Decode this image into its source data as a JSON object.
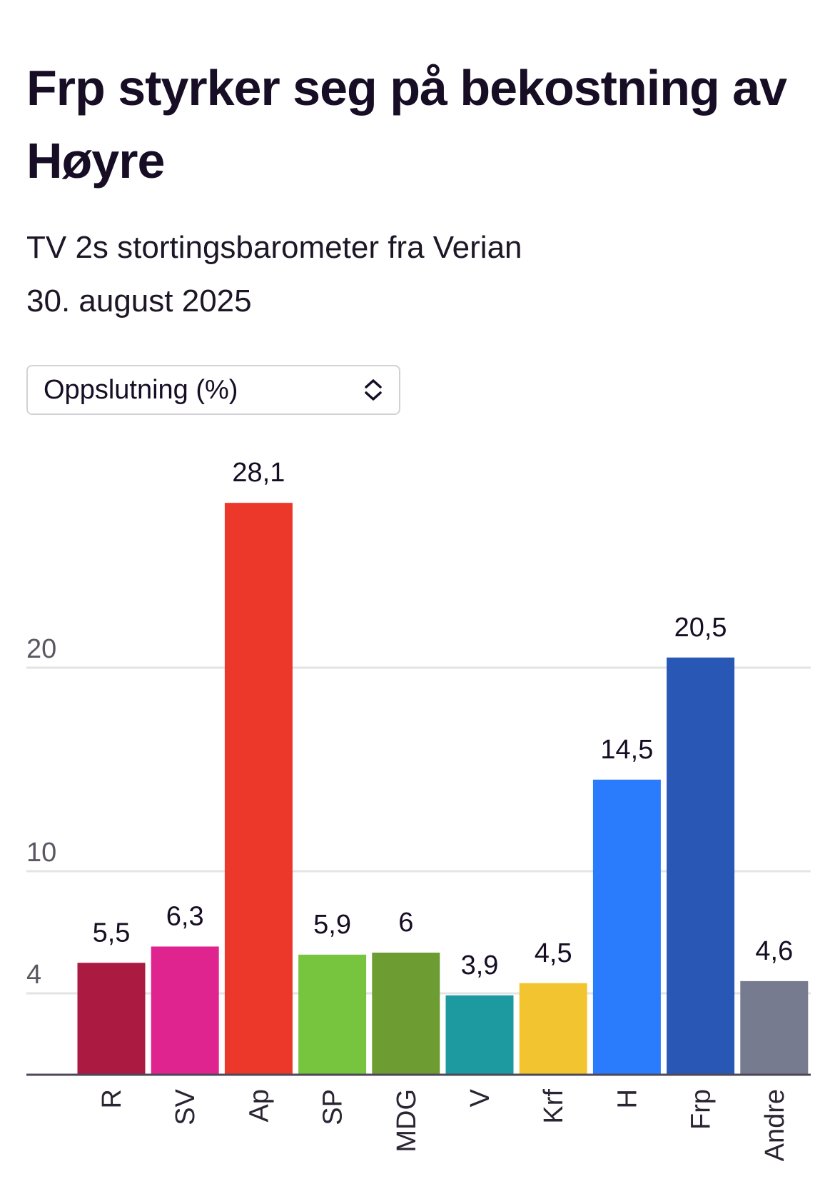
{
  "header": {
    "title": "Frp styrker seg på bekostning av Høyre",
    "subtitle": "TV 2s stortingsbarometer fra Verian",
    "date": "30. august 2025"
  },
  "selector": {
    "value": "Oppslutning (%)",
    "icon": "up-down-chevron-icon"
  },
  "chart_data": {
    "type": "bar",
    "title": "Frp styrker seg på bekostning av Høyre",
    "xlabel": "",
    "ylabel": "Oppslutning (%)",
    "categories": [
      "R",
      "SV",
      "Ap",
      "SP",
      "MDG",
      "V",
      "Krf",
      "H",
      "Frp",
      "Andre"
    ],
    "values": [
      5.5,
      6.3,
      28.1,
      5.9,
      6,
      3.9,
      4.5,
      14.5,
      20.5,
      4.6
    ],
    "value_labels": [
      "5,5",
      "6,3",
      "28,1",
      "5,9",
      "6",
      "3,9",
      "4,5",
      "14,5",
      "20,5",
      "4,6"
    ],
    "colors": [
      "#ab1a40",
      "#e0248f",
      "#ec372b",
      "#77c43f",
      "#6c9c32",
      "#1c9aa0",
      "#f2c530",
      "#2a7cfd",
      "#2957b5",
      "#767b8f"
    ],
    "yticks": [
      4,
      10,
      20
    ],
    "ytick_labels": [
      "4",
      "10",
      "20"
    ],
    "ylim": [
      0,
      28.1
    ],
    "grid": true
  }
}
